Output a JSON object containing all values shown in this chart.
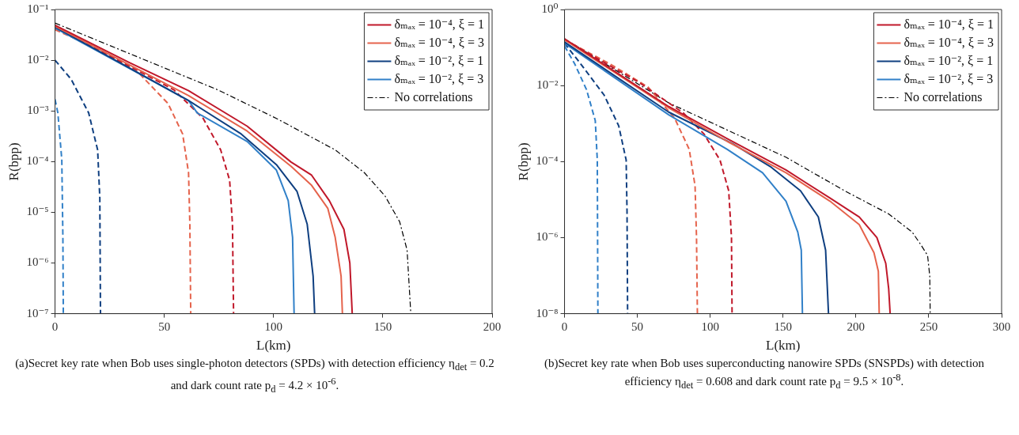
{
  "chart_data": [
    {
      "type": "line",
      "xlabel": "L(km)",
      "ylabel": "R(bpp)",
      "log": "y",
      "grid": false,
      "legend": "top right",
      "marker": "none",
      "xlim": [
        0,
        200
      ],
      "xticks": [
        0,
        50,
        100,
        150,
        200
      ],
      "ylim": [
        1e-07,
        0.1
      ],
      "yticks": [
        {
          "value": 0.1,
          "label": "10⁻¹"
        },
        {
          "value": 0.01,
          "label": "10⁻²"
        },
        {
          "value": 0.001,
          "label": "10⁻³"
        },
        {
          "value": 0.0001,
          "label": "10⁻⁴"
        },
        {
          "value": 1e-05,
          "label": "10⁻⁵"
        },
        {
          "value": 1e-06,
          "label": "10⁻⁶"
        },
        {
          "value": 1e-07,
          "label": "10⁻⁷"
        }
      ],
      "annotations": [
        "(a)Secret key rate when Bob uses single-photon detectors (SPDs) with detection efficiency η$_{det}$ = 0.2 and dark count rate p$_{d}$ = 4.2 × 10$^{-6}$."
      ],
      "series": [
        {
          "name": "δₘₐₓ = 10⁻⁴, ξ = 1",
          "color": "#c0182a",
          "line_style": "solid",
          "x": [
            0,
            34.2,
            61.1,
            87.9,
            108,
            117.4,
            125.5,
            132.2,
            134.9,
            136
          ],
          "values": [
            0.049,
            0.0089,
            0.0025,
            0.0005,
            9.8e-05,
            5.4e-05,
            1.7e-05,
            4.6e-06,
            1e-06,
            1e-07
          ]
        },
        {
          "name": "δₘₐₓ = 10⁻⁴, ξ = 3",
          "color": "#e5634c",
          "line_style": "solid",
          "x": [
            0,
            61.1,
            87.9,
            108,
            117.4,
            124.8,
            128.2,
            130.9,
            131.5
          ],
          "values": [
            0.047,
            0.002,
            0.0004,
            8.1e-05,
            3.4e-05,
            1.2e-05,
            3.2e-06,
            5.5e-07,
            1e-07
          ]
        },
        {
          "name": "δₘₐₓ = 10⁻², ξ = 1",
          "color": "#0f3f80",
          "line_style": "solid",
          "x": [
            0,
            61.1,
            85.2,
            101.3,
            110.7,
            115.4,
            118.1,
            118.8
          ],
          "values": [
            0.045,
            0.0016,
            0.00035,
            8.7e-05,
            2.6e-05,
            5.8e-06,
            5.5e-07,
            1e-07
          ]
        },
        {
          "name": "δₘₐₓ = 10⁻², ξ = 3",
          "color": "#3180c8",
          "line_style": "solid",
          "x": [
            0,
            61.1,
            65.1,
            87.9,
            101.3,
            106.7,
            108.7,
            109.4
          ],
          "values": [
            0.043,
            0.0016,
            0.00091,
            0.00025,
            6.8e-05,
            1.7e-05,
            3.2e-06,
            1e-07
          ]
        },
        {
          "color": "#c0182a",
          "line_style": "dashed",
          "x": [
            0,
            34.2,
            54.4,
            67.8,
            75.8,
            79.9,
            81.2,
            81.7
          ],
          "values": [
            0.043,
            0.0076,
            0.0026,
            0.00071,
            0.00017,
            4.3e-05,
            5.8e-06,
            1e-07
          ]
        },
        {
          "color": "#e5634c",
          "line_style": "dashed",
          "x": [
            0,
            20.8,
            38.3,
            51.7,
            58.4,
            61.1,
            61.7,
            62.1
          ],
          "values": [
            0.04,
            0.016,
            0.0056,
            0.0014,
            0.00035,
            6e-05,
            5.8e-06,
            1e-07
          ]
        },
        {
          "color": "#0f3f80",
          "line_style": "dashed",
          "x": [
            0,
            7.4,
            15.4,
            19.5,
            20.5,
            20.8
          ],
          "values": [
            0.01,
            0.0042,
            0.00091,
            0.00017,
            1.9e-05,
            1e-07
          ]
        },
        {
          "color": "#3180c8",
          "line_style": "dashed",
          "x": [
            0,
            1.3,
            3.1,
            3.6,
            3.8
          ],
          "values": [
            0.0017,
            0.00091,
            0.00011,
            3.2e-06,
            1e-07
          ]
        },
        {
          "name": "No correlations",
          "color": "#000000",
          "line_style": "dashdot",
          "x": [
            0,
            74.5,
            101.3,
            128.2,
            141.6,
            151,
            157.7,
            161.1,
            162.8
          ],
          "values": [
            0.054,
            0.0026,
            0.00071,
            0.00017,
            6e-05,
            2.1e-05,
            6.5e-06,
            1.8e-06,
            1e-07
          ]
        }
      ]
    },
    {
      "type": "line",
      "xlabel": "L(km)",
      "ylabel": "R(bpp)",
      "log": "y",
      "grid": false,
      "legend": "top right",
      "marker": "none",
      "xlim": [
        0,
        300
      ],
      "xticks": [
        0,
        50,
        100,
        150,
        200,
        250,
        300
      ],
      "ylim": [
        1e-08,
        1
      ],
      "yticks": [
        {
          "value": 1,
          "label": "10⁰"
        },
        {
          "value": 0.01,
          "label": "10⁻²"
        },
        {
          "value": 0.0001,
          "label": "10⁻⁴"
        },
        {
          "value": 1e-06,
          "label": "10⁻⁶"
        },
        {
          "value": 1e-08,
          "label": "10⁻⁸"
        }
      ],
      "annotations": [
        "(b)Secret key rate when Bob uses superconducting nanowire SPDs (SNSPDs) with detection efficiency η$_{det}$ = 0.608 and dark count rate p$_{d}$ = 9.5 × 10$^{-8}$."
      ],
      "series": [
        {
          "name": "δₘₐₓ = 10⁻⁴, ξ = 1",
          "color": "#c0182a",
          "line_style": "solid",
          "x": [
            0,
            71.5,
            111.7,
            152,
            182.2,
            202.3,
            214.4,
            220.5,
            222.5,
            223.5
          ],
          "values": [
            0.17,
            0.0028,
            0.0004,
            6e-05,
            1.1e-05,
            3.5e-06,
            1e-06,
            2.1e-07,
            4.5e-08,
            1e-08
          ]
        },
        {
          "name": "δₘₐₓ = 10⁻⁴, ξ = 3",
          "color": "#e5634c",
          "line_style": "solid",
          "x": [
            0,
            71.5,
            111.7,
            152,
            182.2,
            202.3,
            212.4,
            215.4,
            216
          ],
          "values": [
            0.16,
            0.0026,
            0.00034,
            5.1e-05,
            9.1e-06,
            2.2e-06,
            4e-07,
            1.3e-07,
            1e-08
          ]
        },
        {
          "name": "δₘₐₓ = 10⁻², ξ = 1",
          "color": "#0f3f80",
          "line_style": "solid",
          "x": [
            0,
            71.5,
            115.8,
            141.9,
            162,
            174.2,
            179.2,
            181.2
          ],
          "values": [
            0.14,
            0.002,
            0.00029,
            7.1e-05,
            1.7e-05,
            3.5e-06,
            4.7e-07,
            1e-08
          ]
        },
        {
          "name": "δₘₐₓ = 10⁻², ξ = 3",
          "color": "#3180c8",
          "line_style": "solid",
          "x": [
            0,
            71.5,
            111.7,
            135.9,
            152,
            160.1,
            162.5,
            163.3
          ],
          "values": [
            0.13,
            0.0017,
            0.00021,
            5.1e-05,
            9.1e-06,
            1.4e-06,
            4.7e-07,
            1e-08
          ]
        },
        {
          "color": "#c0182a",
          "line_style": "dashed",
          "x": [
            0,
            51.3,
            81.5,
            95.6,
            106.7,
            112.7,
            114.6,
            115
          ],
          "values": [
            0.16,
            0.012,
            0.0019,
            0.00054,
            0.00011,
            1.7e-05,
            1e-06,
            1e-08
          ]
        },
        {
          "color": "#e5634c",
          "line_style": "dashed",
          "x": [
            0,
            31.2,
            57.4,
            75.5,
            85.6,
            89.6,
            90.6,
            91.2
          ],
          "values": [
            0.16,
            0.037,
            0.0091,
            0.0014,
            0.00021,
            2.3e-05,
            1e-06,
            1e-08
          ]
        },
        {
          "color": "#0f3f80",
          "line_style": "dashed",
          "x": [
            0,
            11.1,
            27.2,
            37.2,
            42.3,
            42.9,
            43.3
          ],
          "values": [
            0.13,
            0.037,
            0.0056,
            0.00087,
            0.00011,
            4.9e-06,
            1e-08
          ]
        },
        {
          "color": "#3180c8",
          "line_style": "dashed",
          "x": [
            0,
            7,
            15.1,
            21.1,
            22.5,
            22.9
          ],
          "values": [
            0.11,
            0.037,
            0.0078,
            0.0012,
            0.00011,
            1e-08
          ]
        },
        {
          "name": "No correlations",
          "color": "#000000",
          "line_style": "dashdot",
          "x": [
            0,
            71.5,
            152,
            192.3,
            222.5,
            238.6,
            244.6,
            249.2,
            250.7,
            251
          ],
          "values": [
            0.17,
            0.0035,
            0.00013,
            1.7e-05,
            4.2e-06,
            1.4e-06,
            6.5e-07,
            3.4e-07,
            9.8e-08,
            1e-08
          ]
        }
      ]
    }
  ]
}
